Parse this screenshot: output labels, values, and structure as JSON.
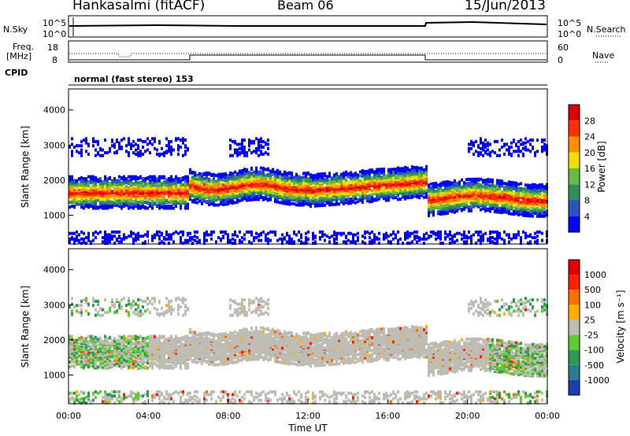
{
  "header": {
    "station": "Hankasalmi (fitACF)",
    "beam": "Beam 06",
    "date": "15/Jun/2013"
  },
  "strip": {
    "nsky_label": "N.Sky",
    "nsky_ticks": [
      "10^5",
      "10^0"
    ],
    "nsearch_label": "N.Search",
    "freq_label_1": "Freq.",
    "freq_label_2": "[MHz]",
    "freq_ticks": [
      "18",
      "8"
    ],
    "nave_ticks": [
      "60",
      "0"
    ],
    "nave_label": "Nave",
    "cpid_label": "CPID",
    "cpid_value": "normal (fast stereo) 153"
  },
  "chart_data": [
    {
      "type": "heatmap",
      "name": "power",
      "ylabel": "Slant Range [km]",
      "xlabel": "",
      "ylim": [
        180,
        4600
      ],
      "yticks": [
        "1000",
        "2000",
        "3000",
        "4000"
      ],
      "colorbar_label": "Power [dB]",
      "colorbar_ticks": [
        "28",
        "24",
        "20",
        "16",
        "12",
        "8",
        "4"
      ],
      "colors": [
        "#0000ff",
        "#2a52be",
        "#2f8f5a",
        "#66bb44",
        "#f0e000",
        "#ff9000",
        "#ff3000",
        "#e00000"
      ]
    },
    {
      "type": "heatmap",
      "name": "velocity",
      "ylabel": "Slant Range [km]",
      "xlabel": "Time UT",
      "ylim": [
        180,
        4600
      ],
      "yticks": [
        "1000",
        "2000",
        "3000",
        "4000"
      ],
      "xticks": [
        "00:00",
        "04:00",
        "08:00",
        "12:00",
        "16:00",
        "20:00",
        "00:00"
      ],
      "colorbar_label": "Velocity [m s⁻¹]",
      "colorbar_ticks": [
        "1000",
        "500",
        "100",
        "25",
        "-25",
        "-100",
        "-500",
        "-1000"
      ],
      "colors": [
        "#1a3fb0",
        "#2a7a90",
        "#2e9a50",
        "#5ccc30",
        "#bdbdb5",
        "#ffb000",
        "#ff7000",
        "#ff2000",
        "#e00000"
      ]
    }
  ]
}
